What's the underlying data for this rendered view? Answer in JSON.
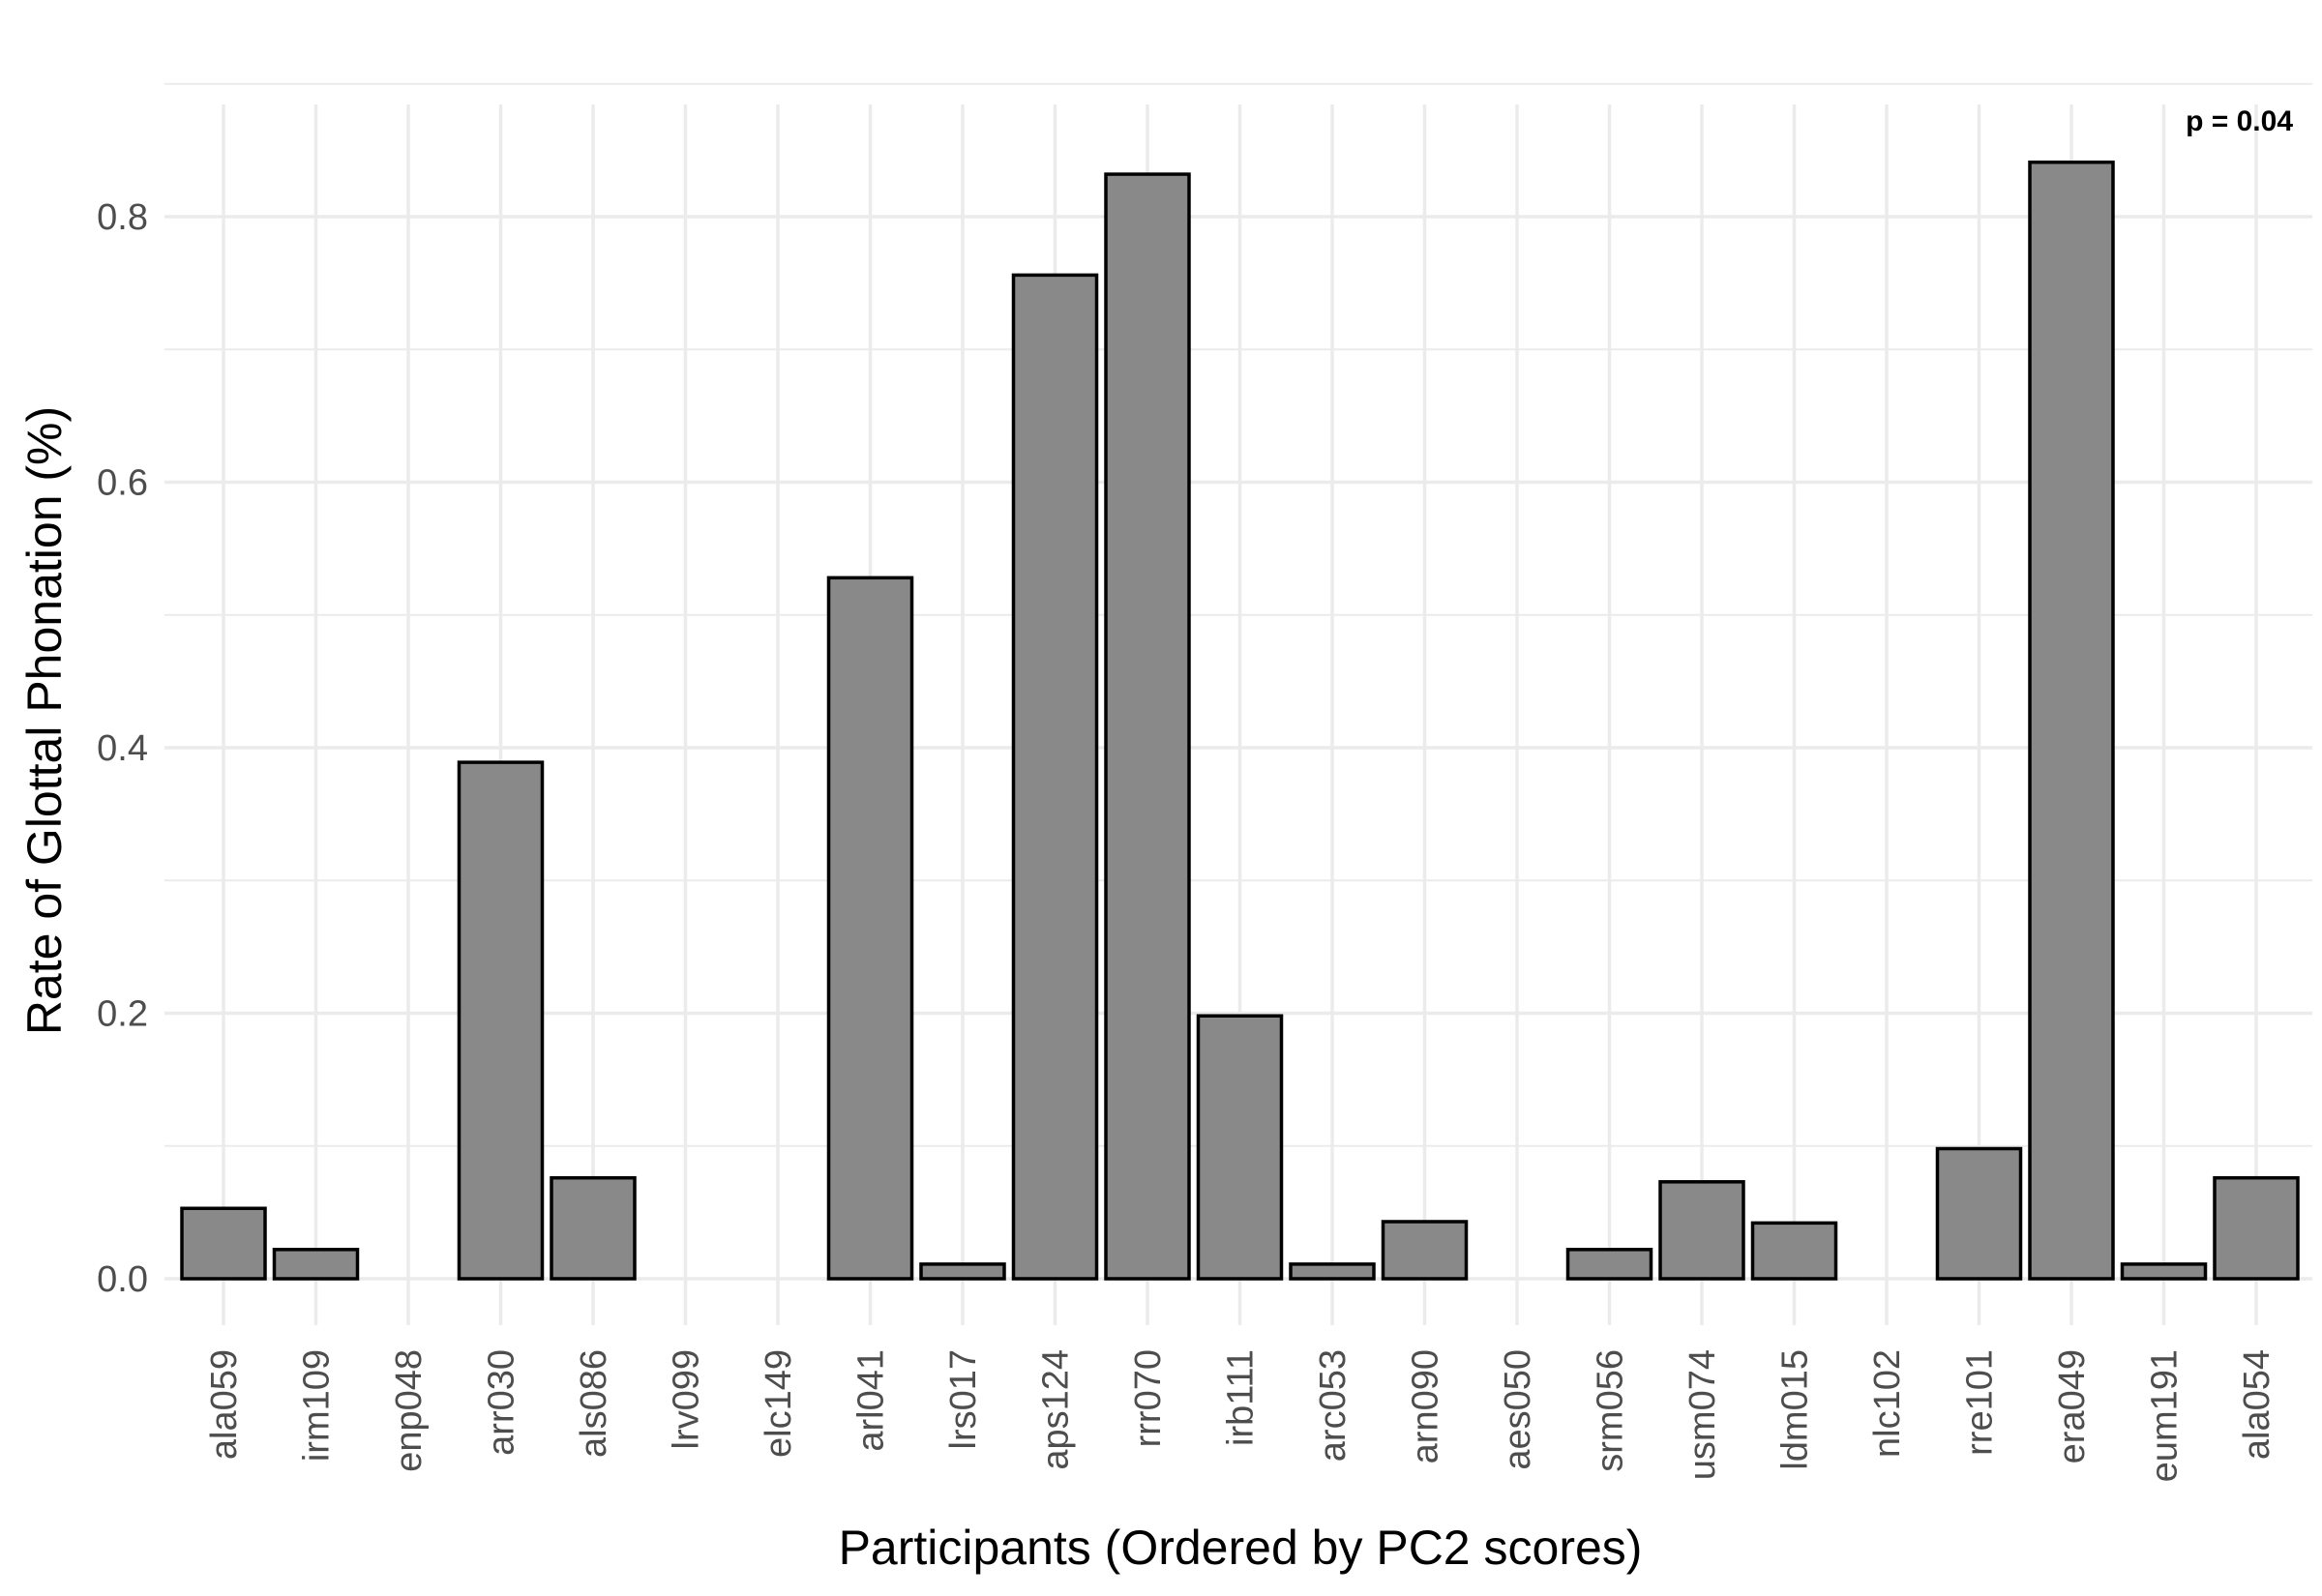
{
  "chart_data": {
    "type": "bar",
    "xlabel": "Participants (Ordered by PC2 scores)",
    "ylabel": "Rate of Glottal Phonation (%)",
    "annotation": "p = 0.04",
    "categories": [
      "ala059",
      "irm109",
      "enp048",
      "arr030",
      "als086",
      "lrv099",
      "elc149",
      "arl041",
      "lrs017",
      "aps124",
      "rrr070",
      "irb111",
      "arc053",
      "arn090",
      "aes050",
      "srm056",
      "usm074",
      "ldm015",
      "nlc102",
      "rre101",
      "era049",
      "eum191",
      "ala054"
    ],
    "values": [
      0.053,
      0.022,
      0.0,
      0.389,
      0.076,
      0.0,
      0.0,
      0.528,
      0.011,
      0.756,
      0.832,
      0.198,
      0.011,
      0.043,
      0.0,
      0.022,
      0.073,
      0.042,
      0.0,
      0.098,
      0.841,
      0.011,
      0.076
    ],
    "yticks": [
      0.0,
      0.2,
      0.4,
      0.6,
      0.8
    ],
    "ytick_labels": [
      "0.0",
      "0.2",
      "0.4",
      "0.6",
      "0.8"
    ],
    "ylim": [
      -0.045,
      0.885
    ],
    "grid": true,
    "bar_color": "#898989",
    "bar_edge_color": "#000000",
    "grid_color": "#ebebeb"
  }
}
